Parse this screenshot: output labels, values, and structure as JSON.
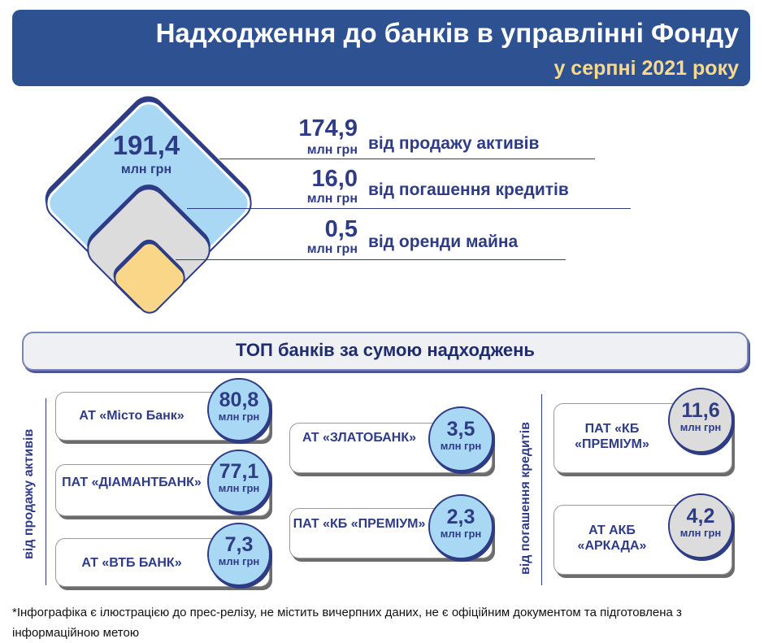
{
  "header": {
    "title": "Надходження до банків в управлінні Фонду",
    "subtitle": "у серпні 2021 року"
  },
  "total": {
    "value": "191,4",
    "unit": "млн грн"
  },
  "sources": [
    {
      "value": "174,9",
      "unit": "млн грн",
      "label": "від продажу активів"
    },
    {
      "value": "16,0",
      "unit": "млн грн",
      "label": "від погашення кредитів"
    },
    {
      "value": "0,5",
      "unit": "млн грн",
      "label": "від оренди майна"
    }
  ],
  "top_title": "ТОП банків за сумою надходжень",
  "side_labels": {
    "sales": "від продажу активів",
    "credits": "від погашення кредитів"
  },
  "banks": [
    {
      "name": "АТ «Місто Банк»",
      "value": "80,8",
      "unit": "млн грн"
    },
    {
      "name": "ПАТ «ДІАМАНТБАНК»",
      "value": "77,1",
      "unit": "млн грн"
    },
    {
      "name": "АТ «ВТБ БАНК»",
      "value": "7,3",
      "unit": "млн грн"
    },
    {
      "name": "АТ «ЗЛАТОБАНК»",
      "value": "3,5",
      "unit": "млн грн"
    },
    {
      "name": "ПАТ «КБ «ПРЕМІУМ»",
      "value": "2,3",
      "unit": "млн грн"
    },
    {
      "name": "ПАТ «КБ «ПРЕМІУМ»",
      "value": "11,6",
      "unit": "млн грн"
    },
    {
      "name": "АТ АКБ «АРКАДА»",
      "value": "4,2",
      "unit": "млн грн"
    }
  ],
  "footnote": "*Інфографіка є ілюстрацією до прес-релізу, не містить вичерпних даних, не є офіційним документом та підготовлена з інформаційною метою",
  "colors": {
    "header_bg": "#2e5192",
    "accent_yellow": "#f9d98a",
    "light_blue": "#a9d8f5",
    "grey": "#dcdcdc",
    "yellow": "#fad688",
    "navy": "#2e3c86"
  }
}
